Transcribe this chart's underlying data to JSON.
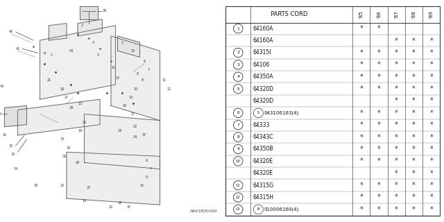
{
  "footer": "A641B00160",
  "table_header": "PARTS CORD",
  "years": [
    "85",
    "86",
    "87",
    "88",
    "89"
  ],
  "rows": [
    {
      "num": "1",
      "part": "64160A",
      "marks": [
        1,
        1,
        0,
        0,
        0
      ]
    },
    {
      "num": "",
      "part": "64160A",
      "marks": [
        0,
        0,
        1,
        1,
        1
      ]
    },
    {
      "num": "2",
      "part": "64315I",
      "marks": [
        1,
        1,
        1,
        1,
        1
      ]
    },
    {
      "num": "3",
      "part": "64106",
      "marks": [
        1,
        1,
        1,
        1,
        1
      ]
    },
    {
      "num": "4",
      "part": "64350A",
      "marks": [
        1,
        1,
        1,
        1,
        1
      ]
    },
    {
      "num": "5",
      "part": "64320D",
      "marks": [
        1,
        1,
        1,
        1,
        1
      ]
    },
    {
      "num": "",
      "part": "64320D",
      "marks": [
        0,
        0,
        1,
        1,
        1
      ]
    },
    {
      "num": "6",
      "part": "S043106163(4)",
      "marks": [
        1,
        1,
        1,
        1,
        1
      ]
    },
    {
      "num": "7",
      "part": "64333",
      "marks": [
        1,
        1,
        1,
        1,
        1
      ]
    },
    {
      "num": "8",
      "part": "64343C",
      "marks": [
        1,
        1,
        1,
        1,
        1
      ]
    },
    {
      "num": "9",
      "part": "64350B",
      "marks": [
        1,
        1,
        1,
        1,
        1
      ]
    },
    {
      "num": "10",
      "part": "64320E",
      "marks": [
        1,
        1,
        1,
        1,
        1
      ]
    },
    {
      "num": "",
      "part": "64320E",
      "marks": [
        0,
        0,
        1,
        1,
        1
      ]
    },
    {
      "num": "11",
      "part": "64315G",
      "marks": [
        1,
        1,
        1,
        1,
        1
      ]
    },
    {
      "num": "12",
      "part": "64315H",
      "marks": [
        1,
        1,
        1,
        1,
        1
      ]
    },
    {
      "num": "13",
      "part": "B010006160(4)",
      "marks": [
        1,
        1,
        1,
        1,
        1
      ]
    }
  ],
  "bg_color": "#ffffff",
  "draw_bg": "#ffffff"
}
